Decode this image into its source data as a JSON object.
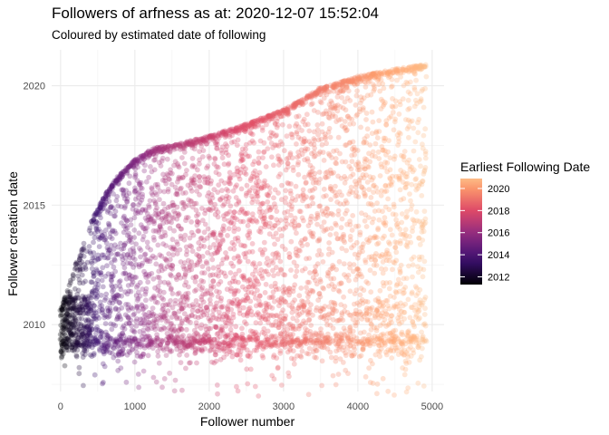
{
  "chart_data": {
    "type": "scatter",
    "title": "Followers of arfness as at: 2020-12-07 15:52:04",
    "subtitle": "Coloured by estimated date of following",
    "xlabel": "Follower number",
    "ylabel": "Follower creation date",
    "xlim": [
      -120,
      5160
    ],
    "ylim": [
      2007.2,
      2021.5
    ],
    "x_ticks": [
      0,
      1000,
      2000,
      3000,
      4000,
      5000
    ],
    "x_tick_labels": [
      "0",
      "1000",
      "2000",
      "3000",
      "4000",
      "5000"
    ],
    "y_ticks": [
      2010,
      2015,
      2020
    ],
    "y_tick_labels": [
      "2010",
      "2015",
      "2020"
    ],
    "n_points": 4920,
    "point_alpha": 0.3,
    "upper_envelope": [
      [
        0,
        2010.6
      ],
      [
        200,
        2012.5
      ],
      [
        400,
        2014.2
      ],
      [
        600,
        2015.5
      ],
      [
        800,
        2016.3
      ],
      [
        1000,
        2016.9
      ],
      [
        1250,
        2017.4
      ],
      [
        1500,
        2017.5
      ],
      [
        2000,
        2017.9
      ],
      [
        2500,
        2018.4
      ],
      [
        3000,
        2019.0
      ],
      [
        3500,
        2019.9
      ],
      [
        4000,
        2020.4
      ],
      [
        4500,
        2020.7
      ],
      [
        4920,
        2020.9
      ]
    ],
    "lower_bound": 2007.0,
    "dense_bands": [
      {
        "y": 2009.3,
        "spread": 0.15
      },
      {
        "y": 2010.5,
        "spread": 0.35
      }
    ],
    "color": {
      "variable": "Earliest Following Date",
      "range": [
        2011.3,
        2020.9
      ],
      "ticks": [
        2012,
        2014,
        2016,
        2018,
        2020
      ],
      "tick_labels": [
        "2012",
        "2014",
        "2016",
        "2018",
        "2020"
      ],
      "stops": [
        "#000004",
        "#3b0f70",
        "#8c2981",
        "#de4968",
        "#fe9f6d",
        "#fcfdbf"
      ]
    },
    "legend_position": "right",
    "grid": true
  }
}
